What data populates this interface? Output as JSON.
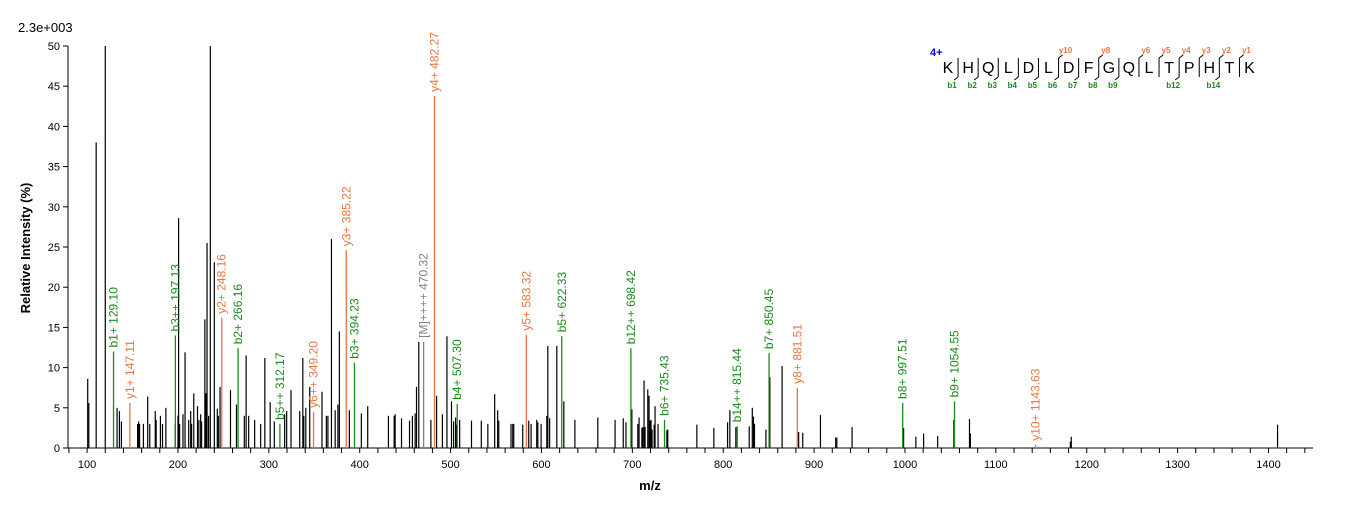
{
  "chart_data": {
    "type": "bar",
    "title": "",
    "scale_label": "2.3e+003",
    "xlabel": "m/z",
    "ylabel": "Relative   Intensity (%)",
    "xlim": [
      79,
      1449
    ],
    "ylim": [
      0,
      50
    ],
    "xticks": [
      100,
      200,
      300,
      400,
      500,
      600,
      700,
      800,
      900,
      1000,
      1100,
      1200,
      1300,
      1400
    ],
    "yticks": [
      0,
      5,
      10,
      15,
      20,
      25,
      30,
      35,
      40,
      45,
      50
    ],
    "grid": false,
    "colors": {
      "b": "#1a8a1a",
      "y": "#e8763e",
      "precursor": "#808080",
      "other": "#000000",
      "charge": "#0000dd"
    },
    "annotated_peaks": [
      {
        "mz": 129.1,
        "y": 12.0,
        "type": "b",
        "label": "b1+ 129.10"
      },
      {
        "mz": 147.11,
        "y": 5.6,
        "type": "y",
        "label": "y1+ 147.11"
      },
      {
        "mz": 197.13,
        "y": 14.0,
        "type": "b",
        "label": "b3++ 197.13"
      },
      {
        "mz": 248.16,
        "y": 16.2,
        "type": "y",
        "label": "y2+ 248.16"
      },
      {
        "mz": 266.16,
        "y": 12.4,
        "type": "b",
        "label": "b2+ 266.16"
      },
      {
        "mz": 312.17,
        "y": 3.0,
        "type": "b",
        "label": "b5++ 312.17"
      },
      {
        "mz": 349.2,
        "y": 4.5,
        "type": "y",
        "label": "y6++ 349.20"
      },
      {
        "mz": 385.22,
        "y": 24.6,
        "type": "y",
        "label": "y3+ 385.22"
      },
      {
        "mz": 394.23,
        "y": 10.6,
        "type": "b",
        "label": "b3+ 394.23"
      },
      {
        "mz": 470.32,
        "y": 13.2,
        "type": "precursor",
        "label": "[M]++++ 470.32"
      },
      {
        "mz": 482.27,
        "y": 43.8,
        "type": "y",
        "label": "y4+ 482.27"
      },
      {
        "mz": 507.3,
        "y": 5.5,
        "type": "b",
        "label": "b4+ 507.30"
      },
      {
        "mz": 583.32,
        "y": 14.1,
        "type": "y",
        "label": "y5+ 583.32"
      },
      {
        "mz": 622.33,
        "y": 13.9,
        "type": "b",
        "label": "b5+ 622.33"
      },
      {
        "mz": 698.42,
        "y": 12.4,
        "type": "b",
        "label": "b12++ 698.42"
      },
      {
        "mz": 735.43,
        "y": 3.5,
        "type": "b",
        "label": "b6+ 735.43"
      },
      {
        "mz": 815.44,
        "y": 2.7,
        "type": "b",
        "label": "b14++ 815.44"
      },
      {
        "mz": 850.45,
        "y": 11.8,
        "type": "b",
        "label": "b7+ 850.45"
      },
      {
        "mz": 881.51,
        "y": 7.5,
        "type": "y",
        "label": "y8+ 881.51"
      },
      {
        "mz": 997.51,
        "y": 5.6,
        "type": "b",
        "label": "b8+ 997.51"
      },
      {
        "mz": 1054.55,
        "y": 5.8,
        "type": "b",
        "label": "b9+ 1054.55"
      },
      {
        "mz": 1143.63,
        "y": 0.4,
        "type": "y",
        "label": "y10+ 1143.63"
      }
    ],
    "other_peaks": [
      [
        100.7,
        8.6
      ],
      [
        101.9,
        5.6
      ],
      [
        110,
        38
      ],
      [
        120,
        50
      ],
      [
        133,
        5
      ],
      [
        135.6,
        4.6
      ],
      [
        137.8,
        3.3
      ],
      [
        155.6,
        3
      ],
      [
        156.7,
        3.3
      ],
      [
        157.8,
        3
      ],
      [
        162,
        3
      ],
      [
        166.7,
        6.4
      ],
      [
        169,
        3
      ],
      [
        175,
        4.6
      ],
      [
        176,
        3.5
      ],
      [
        180.7,
        4
      ],
      [
        183,
        3
      ],
      [
        186.7,
        5
      ],
      [
        197,
        3
      ],
      [
        200,
        4
      ],
      [
        200.7,
        28.6
      ],
      [
        201.8,
        3
      ],
      [
        205.5,
        4.2
      ],
      [
        207.8,
        11.9
      ],
      [
        211.8,
        3.5
      ],
      [
        214,
        4.6
      ],
      [
        215,
        3
      ],
      [
        217.4,
        6.8
      ],
      [
        221.5,
        5.2
      ],
      [
        223,
        3.5
      ],
      [
        225,
        4.2
      ],
      [
        226,
        3.3
      ],
      [
        229.6,
        16
      ],
      [
        230.4,
        6.8
      ],
      [
        231,
        6.8
      ],
      [
        232,
        25.5
      ],
      [
        233.7,
        4
      ],
      [
        235.6,
        50
      ],
      [
        240,
        23.1
      ],
      [
        243.3,
        4.9
      ],
      [
        244.4,
        4
      ],
      [
        246.3,
        7.6
      ],
      [
        257.8,
        7.2
      ],
      [
        264.4,
        5.4
      ],
      [
        273,
        4
      ],
      [
        275,
        11.5
      ],
      [
        277.8,
        4
      ],
      [
        284.4,
        3.5
      ],
      [
        291,
        3
      ],
      [
        295.6,
        11.2
      ],
      [
        301.5,
        5.7
      ],
      [
        306,
        3.3
      ],
      [
        317.4,
        4.2
      ],
      [
        319.6,
        4.6
      ],
      [
        324.4,
        7.2
      ],
      [
        334,
        4.6
      ],
      [
        337.4,
        11.2
      ],
      [
        338.5,
        4
      ],
      [
        340.7,
        5
      ],
      [
        345,
        7.6
      ],
      [
        358.5,
        7
      ],
      [
        363.3,
        4
      ],
      [
        365,
        4
      ],
      [
        368.9,
        26
      ],
      [
        373,
        4.7
      ],
      [
        376,
        5.4
      ],
      [
        377.6,
        14.5
      ],
      [
        388.6,
        4.7
      ],
      [
        401.8,
        4.3
      ],
      [
        408.8,
        5.2
      ],
      [
        431.6,
        4
      ],
      [
        437.9,
        4
      ],
      [
        439,
        4.2
      ],
      [
        446,
        3.7
      ],
      [
        454.8,
        3.4
      ],
      [
        458,
        4
      ],
      [
        461,
        4.3
      ],
      [
        462.5,
        7.6
      ],
      [
        465,
        13.2
      ],
      [
        478.3,
        3.5
      ],
      [
        484.6,
        6.5
      ],
      [
        491,
        4.2
      ],
      [
        496,
        13.9
      ],
      [
        501,
        5.8
      ],
      [
        503.3,
        3.3
      ],
      [
        505.5,
        3.8
      ],
      [
        506.6,
        2.9
      ],
      [
        510,
        3.5
      ],
      [
        523,
        3.4
      ],
      [
        533.8,
        3.4
      ],
      [
        541,
        3
      ],
      [
        548.5,
        6.7
      ],
      [
        551.8,
        4.7
      ],
      [
        553,
        3.4
      ],
      [
        566.5,
        3
      ],
      [
        568.4,
        3
      ],
      [
        569.5,
        3
      ],
      [
        579.4,
        2.9
      ],
      [
        586,
        3.4
      ],
      [
        588.6,
        3
      ],
      [
        594.8,
        3.5
      ],
      [
        596,
        3.2
      ],
      [
        599.6,
        3
      ],
      [
        605.9,
        4
      ],
      [
        607,
        12.7
      ],
      [
        609,
        3.7
      ],
      [
        616.9,
        12.7
      ],
      [
        624.6,
        5.8
      ],
      [
        636.8,
        3.5
      ],
      [
        662,
        3.8
      ],
      [
        681,
        3.5
      ],
      [
        690,
        3.7
      ],
      [
        693,
        3.2
      ],
      [
        699.5,
        4.8
      ],
      [
        706,
        3
      ],
      [
        707.4,
        3.8
      ],
      [
        710.5,
        2.5
      ],
      [
        711.5,
        2.6
      ],
      [
        712.9,
        8.4
      ],
      [
        714,
        2.6
      ],
      [
        717,
        7.3
      ],
      [
        718.4,
        6.5
      ],
      [
        719.5,
        3.4
      ],
      [
        720.6,
        3.5
      ],
      [
        721.7,
        2.3
      ],
      [
        724,
        2.9
      ],
      [
        725,
        5.2
      ],
      [
        728.3,
        3
      ],
      [
        738,
        2.2
      ],
      [
        739,
        2.3
      ],
      [
        771,
        2.9
      ],
      [
        789.7,
        2.5
      ],
      [
        804.8,
        3.2
      ],
      [
        807.3,
        4.7
      ],
      [
        813.9,
        2.6
      ],
      [
        828.6,
        2.7
      ],
      [
        832,
        5
      ],
      [
        833.3,
        3.9
      ],
      [
        834.4,
        3
      ],
      [
        847,
        2.3
      ],
      [
        851.3,
        8.8
      ],
      [
        864.8,
        10.2
      ],
      [
        883,
        2
      ],
      [
        887.5,
        1.9
      ],
      [
        907,
        4.1
      ],
      [
        923.8,
        1.3
      ],
      [
        925,
        1.3
      ],
      [
        941.8,
        2.6
      ],
      [
        998.5,
        2.5
      ],
      [
        1012,
        1.4
      ],
      [
        1020.5,
        1.8
      ],
      [
        1036,
        1.5
      ],
      [
        1053.8,
        3.5
      ],
      [
        1071,
        3.6
      ],
      [
        1072,
        1.8
      ],
      [
        1182,
        0.8
      ],
      [
        1183,
        1.4
      ],
      [
        1410,
        2.9
      ]
    ]
  },
  "peptide": {
    "charge": "4+",
    "sequence": [
      "K",
      "H",
      "Q",
      "L",
      "D",
      "L",
      "D",
      "F",
      "G",
      "Q",
      "L",
      "T",
      "P",
      "H",
      "T",
      "K"
    ],
    "b_ions": [
      1,
      2,
      3,
      4,
      5,
      6,
      7,
      8,
      9,
      12,
      14
    ],
    "y_ions": [
      1,
      2,
      3,
      4,
      5,
      6,
      8,
      10
    ]
  }
}
